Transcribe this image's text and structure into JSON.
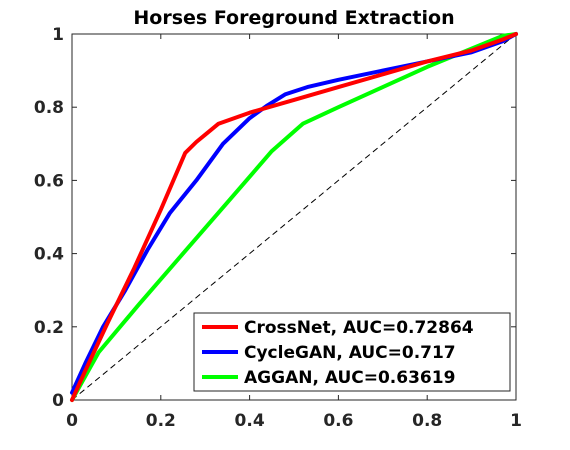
{
  "chart_data": {
    "type": "line",
    "title": "Horses Foreground Extraction",
    "xlabel": "",
    "ylabel": "",
    "xlim": [
      0,
      1
    ],
    "ylim": [
      0,
      1
    ],
    "xticks": [
      "0",
      "0.2",
      "0.4",
      "0.6",
      "0.8",
      "1"
    ],
    "yticks": [
      "0",
      "0.2",
      "0.4",
      "0.6",
      "0.8",
      "1"
    ],
    "grid": false,
    "legend_position": "bottom-right",
    "reference_line": {
      "x": [
        0,
        1
      ],
      "y": [
        0,
        1
      ],
      "style": "dashed",
      "color": "#000000"
    },
    "series": [
      {
        "name": "CrossNet, AUC=0.72864",
        "color": "#ff0000",
        "x": [
          0,
          0.03,
          0.08,
          0.14,
          0.2,
          0.255,
          0.28,
          0.3,
          0.33,
          0.4,
          0.5,
          0.6,
          0.7,
          0.8,
          0.9,
          0.97,
          1
        ],
        "y": [
          0,
          0.08,
          0.21,
          0.36,
          0.52,
          0.675,
          0.705,
          0.725,
          0.755,
          0.785,
          0.82,
          0.855,
          0.89,
          0.925,
          0.955,
          0.985,
          1
        ]
      },
      {
        "name": "CycleGAN, AUC=0.717",
        "color": "#0000ff",
        "x": [
          0,
          0.03,
          0.07,
          0.12,
          0.17,
          0.22,
          0.28,
          0.34,
          0.4,
          0.44,
          0.48,
          0.53,
          0.6,
          0.7,
          0.8,
          0.9,
          0.97,
          1
        ],
        "y": [
          0.02,
          0.1,
          0.2,
          0.3,
          0.41,
          0.51,
          0.6,
          0.7,
          0.77,
          0.805,
          0.835,
          0.855,
          0.875,
          0.9,
          0.925,
          0.95,
          0.98,
          1
        ]
      },
      {
        "name": "AGGAN, AUC=0.63619",
        "color": "#00ff00",
        "x": [
          0,
          0.06,
          0.15,
          0.25,
          0.35,
          0.45,
          0.52,
          0.6,
          0.7,
          0.8,
          0.9,
          0.97,
          1
        ],
        "y": [
          0,
          0.13,
          0.26,
          0.4,
          0.54,
          0.68,
          0.755,
          0.8,
          0.855,
          0.91,
          0.96,
          0.995,
          1
        ]
      }
    ]
  }
}
